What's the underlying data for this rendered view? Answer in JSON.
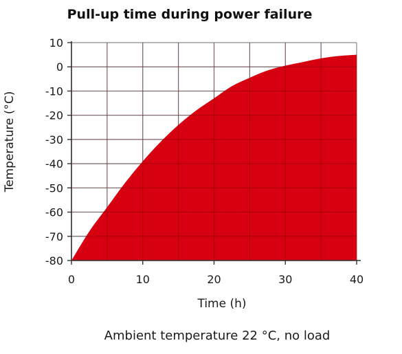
{
  "chart_data": {
    "type": "area",
    "title": "Pull-up time during power failure",
    "xlabel": "Time (h)",
    "ylabel": "Temperature (°C)",
    "caption": "Ambient temperature 22 °C, no load",
    "xlim": [
      0,
      40
    ],
    "ylim": [
      -80,
      10
    ],
    "x_ticks": [
      0,
      10,
      20,
      30,
      40
    ],
    "y_ticks": [
      10,
      0,
      -10,
      -20,
      -30,
      -40,
      -50,
      -60,
      -70,
      -80
    ],
    "x_grid_step": 5,
    "grid": true,
    "series": [
      {
        "x": [
          0,
          2.5,
          5,
          7.5,
          10,
          12.5,
          15,
          17.5,
          20,
          22.5,
          25,
          27.5,
          30,
          32.5,
          35,
          37.5,
          40
        ],
        "y": [
          -80,
          -68,
          -58,
          -48,
          -39,
          -31,
          -24,
          -18,
          -13,
          -8,
          -4.5,
          -1.5,
          0.5,
          2,
          3.5,
          4.5,
          5
        ]
      }
    ],
    "colors": {
      "fill": "#d60010",
      "grid": "#8a8a8a",
      "axis": "#333333",
      "background": "#ffffff"
    }
  }
}
